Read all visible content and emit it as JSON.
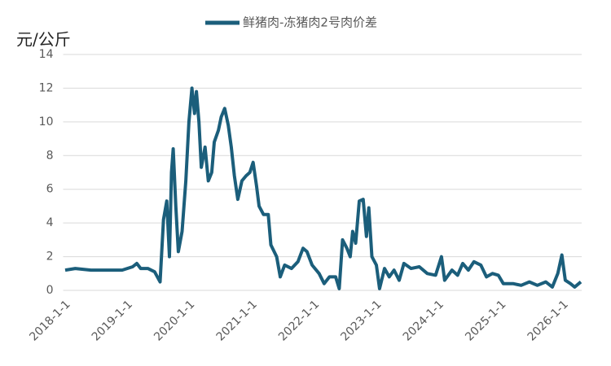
{
  "chart_data": {
    "type": "line",
    "y_label": "元/公斤",
    "x": [
      "2018-1-1",
      "2018-3-1",
      "2018-6-1",
      "2018-9-1",
      "2018-12-1",
      "2019-2-1",
      "2019-2-25",
      "2019-3-20",
      "2019-5-1",
      "2019-6-10",
      "2019-7-12",
      "2019-8-1",
      "2019-8-20",
      "2019-9-5",
      "2019-9-17",
      "2019-9-27",
      "2019-10-12",
      "2019-10-27",
      "2019-11-18",
      "2019-12-10",
      "2019-12-28",
      "2020-1-15",
      "2020-1-30",
      "2020-2-10",
      "2020-2-25",
      "2020-3-10",
      "2020-4-1",
      "2020-4-20",
      "2020-5-10",
      "2020-5-25",
      "2020-6-18",
      "2020-7-5",
      "2020-7-25",
      "2020-8-15",
      "2020-9-2",
      "2020-9-20",
      "2020-10-10",
      "2020-11-3",
      "2020-11-28",
      "2020-12-20",
      "2021-1-8",
      "2021-1-28",
      "2021-2-12",
      "2021-3-10",
      "2021-4-7",
      "2021-4-22",
      "2021-5-26",
      "2021-6-16",
      "2021-7-12",
      "2021-8-21",
      "2021-9-28",
      "2021-10-28",
      "2021-11-20",
      "2021-12-20",
      "2022-1-30",
      "2022-3-1",
      "2022-4-1",
      "2022-5-7",
      "2022-5-28",
      "2022-6-17",
      "2022-7-12",
      "2022-8-1",
      "2022-8-15",
      "2022-9-2",
      "2022-9-23",
      "2022-10-16",
      "2022-11-4",
      "2022-11-18",
      "2022-12-6",
      "2023-1-1",
      "2023-1-20",
      "2023-2-18",
      "2023-3-18",
      "2023-4-15",
      "2023-5-15",
      "2023-6-12",
      "2023-7-24",
      "2023-9-10",
      "2023-10-27",
      "2023-12-15",
      "2024-1-18",
      "2024-2-6",
      "2024-3-20",
      "2024-4-22",
      "2024-5-22",
      "2024-6-24",
      "2024-7-27",
      "2024-9-5",
      "2024-10-8",
      "2024-11-13",
      "2024-12-17",
      "2025-1-15",
      "2025-3-13",
      "2025-4-30",
      "2025-6-17",
      "2025-8-3",
      "2025-9-21",
      "2025-10-30",
      "2025-12-1",
      "2025-12-25",
      "2026-1-14",
      "2026-2-13",
      "2026-3-10",
      "2026-4-15"
    ],
    "series": [
      {
        "name": "鲜猪肉-冻猪肉2号肉价差",
        "color": "#1b5e7b",
        "values": [
          1.2,
          1.3,
          1.2,
          1.2,
          1.2,
          1.4,
          1.6,
          1.3,
          1.3,
          1.1,
          0.5,
          4.2,
          5.3,
          2.0,
          7.0,
          8.4,
          5.0,
          2.3,
          3.5,
          6.5,
          10.0,
          12.0,
          10.5,
          11.8,
          10.0,
          7.3,
          8.5,
          6.5,
          7.0,
          8.8,
          9.5,
          10.3,
          10.8,
          9.8,
          8.5,
          6.8,
          5.4,
          6.5,
          6.8,
          7.0,
          7.6,
          6.2,
          5.0,
          4.5,
          4.5,
          2.7,
          2.0,
          0.8,
          1.5,
          1.3,
          1.7,
          2.5,
          2.3,
          1.5,
          1.0,
          0.4,
          0.8,
          0.8,
          0.1,
          3.0,
          2.5,
          2.0,
          3.5,
          2.8,
          5.3,
          5.4,
          3.2,
          4.9,
          2.0,
          1.5,
          0.1,
          1.3,
          0.8,
          1.2,
          0.6,
          1.6,
          1.3,
          1.4,
          1.0,
          0.9,
          2.0,
          0.6,
          1.2,
          0.9,
          1.6,
          1.2,
          1.7,
          1.5,
          0.8,
          1.0,
          0.9,
          0.4,
          0.4,
          0.3,
          0.5,
          0.3,
          0.5,
          0.2,
          1.0,
          2.1,
          0.6,
          0.4,
          0.2,
          0.5
        ]
      }
    ],
    "xlim": [
      "2017-12-20",
      "2026-4-20"
    ],
    "xticks": [
      "2018-1-1",
      "2019-1-1",
      "2020-1-1",
      "2021-1-1",
      "2022-1-1",
      "2023-1-1",
      "2024-1-1",
      "2025-1-1",
      "2026-1-1"
    ],
    "ylim": [
      0,
      14
    ],
    "yticks": [
      0,
      2,
      4,
      6,
      8,
      10,
      12,
      14
    ],
    "grid": true,
    "legend": "top"
  }
}
